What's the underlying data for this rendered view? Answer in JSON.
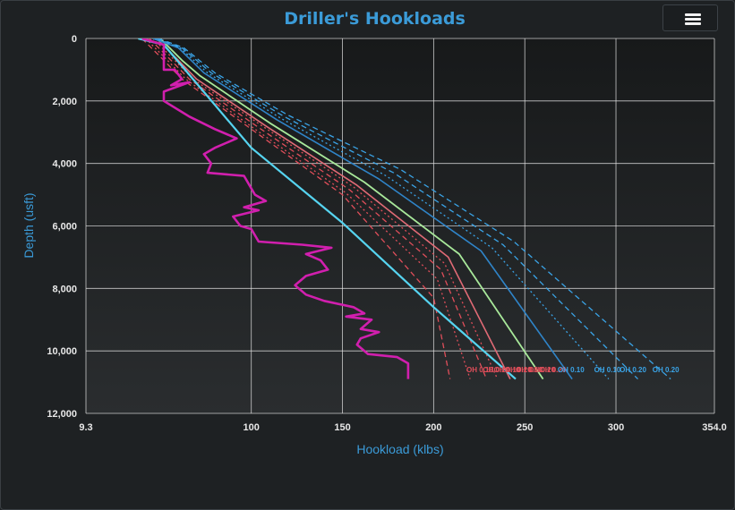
{
  "chart_data": {
    "type": "line",
    "title": "Driller's Hookloads",
    "xlabel": "Hookload (klbs)",
    "ylabel": "Depth (usft)",
    "xlim": [
      9.3,
      354.0
    ],
    "ylim": [
      0,
      12000
    ],
    "y_reversed": true,
    "grid": true,
    "x_ticks": [
      {
        "value": 9.3,
        "label": "9.3"
      },
      {
        "value": 100,
        "label": "100"
      },
      {
        "value": 150,
        "label": "150"
      },
      {
        "value": 200,
        "label": "200"
      },
      {
        "value": 250,
        "label": "250"
      },
      {
        "value": 300,
        "label": "300"
      },
      {
        "value": 354.0,
        "label": "354.0"
      }
    ],
    "y_ticks": [
      {
        "value": 0,
        "label": "0"
      },
      {
        "value": 2000,
        "label": "2,000"
      },
      {
        "value": 4000,
        "label": "4,000"
      },
      {
        "value": 6000,
        "label": "6,000"
      },
      {
        "value": 8000,
        "label": "8,000"
      },
      {
        "value": 10000,
        "label": "10,000"
      },
      {
        "value": 12000,
        "label": "12,000"
      }
    ],
    "series": [
      {
        "color": "#e04e5a",
        "dash": "6 4",
        "width": 1.3,
        "points": [
          [
            40,
            0
          ],
          [
            52,
            700
          ],
          [
            62,
            1300
          ],
          [
            100,
            2900
          ],
          [
            150,
            5000
          ],
          [
            200,
            8300
          ],
          [
            209,
            10900
          ]
        ]
      },
      {
        "color": "#e04e5a",
        "dash": "2 3",
        "width": 1.3,
        "points": [
          [
            42,
            0
          ],
          [
            54,
            700
          ],
          [
            64,
            1300
          ],
          [
            102,
            2900
          ],
          [
            152,
            4950
          ],
          [
            202,
            7700
          ],
          [
            220,
            10900
          ]
        ]
      },
      {
        "color": "#e04e5a",
        "dash": "6 4",
        "width": 1.3,
        "points": [
          [
            44,
            0
          ],
          [
            56,
            700
          ],
          [
            66,
            1300
          ],
          [
            104,
            2850
          ],
          [
            154,
            4850
          ],
          [
            204,
            7400
          ],
          [
            229,
            10900
          ]
        ]
      },
      {
        "color": "#e04e5a",
        "dash": "2 3",
        "width": 1.3,
        "points": [
          [
            46,
            0
          ],
          [
            58,
            700
          ],
          [
            68,
            1300
          ],
          [
            106,
            2800
          ],
          [
            156,
            4750
          ],
          [
            206,
            7200
          ],
          [
            235,
            10900
          ]
        ]
      },
      {
        "color": "#e06a75",
        "dash": "",
        "width": 1.6,
        "points": [
          [
            48,
            0
          ],
          [
            60,
            700
          ],
          [
            70,
            1300
          ],
          [
            108,
            2800
          ],
          [
            158,
            4700
          ],
          [
            208,
            7000
          ],
          [
            242,
            10900
          ]
        ]
      },
      {
        "color": "#a8e89a",
        "dash": "",
        "width": 1.8,
        "points": [
          [
            50,
            0
          ],
          [
            62,
            700
          ],
          [
            72,
            1200
          ],
          [
            110,
            2700
          ],
          [
            162,
            4600
          ],
          [
            214,
            6900
          ],
          [
            260,
            10900
          ]
        ]
      },
      {
        "color": "#2f84c8",
        "dash": "",
        "width": 1.6,
        "points": [
          [
            46,
            0
          ],
          [
            60,
            300
          ],
          [
            74,
            1100
          ],
          [
            114,
            2600
          ],
          [
            170,
            4500
          ],
          [
            226,
            6800
          ],
          [
            276,
            10900
          ]
        ]
      },
      {
        "color": "#3aa3e6",
        "dash": "2 3",
        "width": 1.3,
        "points": [
          [
            47,
            0
          ],
          [
            61,
            300
          ],
          [
            76,
            1100
          ],
          [
            116,
            2550
          ],
          [
            174,
            4400
          ],
          [
            232,
            6700
          ],
          [
            296,
            10900
          ]
        ]
      },
      {
        "color": "#3aa3e6",
        "dash": "6 4",
        "width": 1.3,
        "points": [
          [
            48,
            0
          ],
          [
            62,
            300
          ],
          [
            78,
            1100
          ],
          [
            118,
            2500
          ],
          [
            178,
            4300
          ],
          [
            238,
            6600
          ],
          [
            312,
            10900
          ]
        ]
      },
      {
        "color": "#3aa3e6",
        "dash": "6 4",
        "width": 1.3,
        "points": [
          [
            49,
            0
          ],
          [
            63,
            300
          ],
          [
            80,
            1100
          ],
          [
            120,
            2450
          ],
          [
            182,
            4200
          ],
          [
            244,
            6500
          ],
          [
            330,
            10900
          ]
        ]
      },
      {
        "color": "#56d4f0",
        "dash": "",
        "width": 2.2,
        "points": [
          [
            38,
            0
          ],
          [
            52,
            200
          ],
          [
            100,
            3500
          ],
          [
            150,
            5900
          ],
          [
            200,
            8600
          ],
          [
            245,
            10900
          ]
        ]
      },
      {
        "color": "#d11fae",
        "dash": "",
        "width": 2.6,
        "points": [
          [
            40,
            0
          ],
          [
            46,
            100
          ],
          [
            52,
            200
          ],
          [
            52,
            1000
          ],
          [
            58,
            1000
          ],
          [
            62,
            1300
          ],
          [
            56,
            1500
          ],
          [
            66,
            1400
          ],
          [
            52,
            1700
          ],
          [
            52,
            2000
          ],
          [
            66,
            2500
          ],
          [
            80,
            2900
          ],
          [
            92,
            3200
          ],
          [
            80,
            3500
          ],
          [
            74,
            3700
          ],
          [
            78,
            4000
          ],
          [
            76,
            4300
          ],
          [
            96,
            4400
          ],
          [
            102,
            5000
          ],
          [
            108,
            5200
          ],
          [
            96,
            5400
          ],
          [
            104,
            5500
          ],
          [
            90,
            5700
          ],
          [
            94,
            6000
          ],
          [
            100,
            6100
          ],
          [
            104,
            6500
          ],
          [
            128,
            6600
          ],
          [
            144,
            6700
          ],
          [
            130,
            6900
          ],
          [
            138,
            7100
          ],
          [
            142,
            7400
          ],
          [
            130,
            7600
          ],
          [
            124,
            7900
          ],
          [
            130,
            8200
          ],
          [
            140,
            8400
          ],
          [
            156,
            8600
          ],
          [
            162,
            8800
          ],
          [
            152,
            8900
          ],
          [
            166,
            9000
          ],
          [
            160,
            9300
          ],
          [
            170,
            9400
          ],
          [
            160,
            9600
          ],
          [
            158,
            9800
          ],
          [
            164,
            10100
          ],
          [
            180,
            10200
          ],
          [
            186,
            10400
          ],
          [
            186,
            10900
          ]
        ]
      }
    ],
    "curve_labels": [
      {
        "text": "OH 0.10",
        "color": "#e04e5a",
        "x": 218,
        "y": 10600
      },
      {
        "text": "OH 0.20",
        "color": "#e04e5a",
        "x": 227,
        "y": 10600
      },
      {
        "text": "OH 0.10",
        "color": "#e04e5a",
        "x": 233,
        "y": 10600
      },
      {
        "text": "OH 0.20",
        "color": "#e04e5a",
        "x": 239,
        "y": 10600
      },
      {
        "text": "OH 0.10",
        "color": "#e04e5a",
        "x": 245,
        "y": 10600
      },
      {
        "text": "OH 0.20",
        "color": "#e04e5a",
        "x": 252,
        "y": 10600
      },
      {
        "text": "OH 0.20",
        "color": "#e04e5a",
        "x": 258,
        "y": 10600
      },
      {
        "text": "OH 0.10",
        "color": "#3aa3e6",
        "x": 268,
        "y": 10600
      },
      {
        "text": "OH 0.10",
        "color": "#3aa3e6",
        "x": 288,
        "y": 10600
      },
      {
        "text": "OH 0.20",
        "color": "#3aa3e6",
        "x": 302,
        "y": 10600
      },
      {
        "text": "OH 0.20",
        "color": "#3aa3e6",
        "x": 320,
        "y": 10600
      }
    ]
  }
}
